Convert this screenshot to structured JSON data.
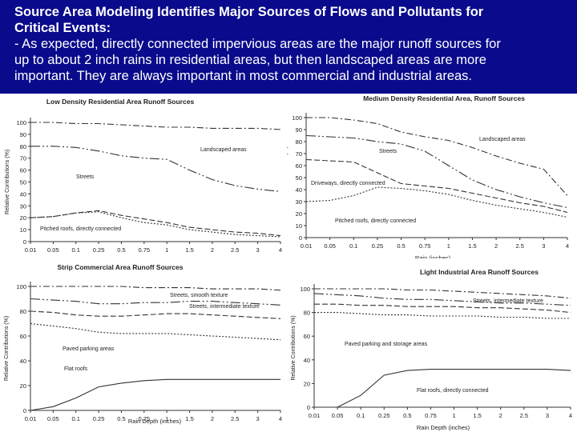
{
  "slide": {
    "headline_line1": "Source Area Modeling Identifies Major Sources of Flows and Pollutants for",
    "headline_line2": "Critical Events:",
    "body_line1": "- As expected, directly connected impervious areas are the major runoff sources for",
    "body_line2": "up to about 2 inch rains in residential areas, but then landscaped areas are more",
    "body_line3": "important. They are always important in most commercial and industrial areas."
  },
  "chart_data": [
    {
      "type": "line",
      "title": "Low Density Residential Area Runoff Sources",
      "xlabel": "",
      "ylabel": "Relative Contributions (%)",
      "categories": [
        "0.01",
        "0.05",
        "0.1",
        "0.25",
        "0.5",
        "0.75",
        "1",
        "1.5",
        "2",
        "2.5",
        "3",
        "4"
      ],
      "yticks": [
        "0",
        "10",
        "20",
        "30",
        "40",
        "50",
        "60",
        "70",
        "80",
        "90",
        "100"
      ],
      "ylim": [
        0,
        100
      ],
      "series": [
        {
          "name": "Landscaped areas",
          "values": [
            100,
            100,
            99,
            99,
            98,
            97,
            96,
            96,
            95,
            95,
            95,
            94
          ]
        },
        {
          "name": "Streets",
          "values": [
            80,
            80,
            79,
            76,
            72,
            70,
            69,
            60,
            52,
            47,
            44,
            42
          ]
        },
        {
          "name": "Pitched roofs, directly connected",
          "values": [
            20,
            21,
            24,
            26,
            22,
            19,
            16,
            12,
            10,
            8,
            7,
            5
          ]
        },
        {
          "name": "",
          "values": [
            20,
            21,
            24,
            25,
            20,
            16,
            14,
            10,
            8,
            6,
            5,
            4
          ]
        }
      ]
    },
    {
      "type": "line",
      "title": "Medium Density Residential Area, Runoff Sources",
      "xlabel": "Rain (inches)",
      "ylabel": "Relative Contribution (%)",
      "categories": [
        "0.01",
        "0.05",
        "0.1",
        "0.25",
        "0.5",
        "0.75",
        "1",
        "1.5",
        "2",
        "2.5",
        "3",
        "4"
      ],
      "yticks": [
        "0",
        "10",
        "20",
        "30",
        "40",
        "50",
        "60",
        "70",
        "80",
        "90",
        "100"
      ],
      "ylim": [
        0,
        100
      ],
      "series": [
        {
          "name": "Landscaped areas",
          "values": [
            100,
            100,
            98,
            95,
            88,
            84,
            81,
            75,
            68,
            62,
            57,
            35
          ]
        },
        {
          "name": "Streets",
          "values": [
            85,
            84,
            83,
            80,
            78,
            72,
            60,
            48,
            40,
            34,
            29,
            25
          ]
        },
        {
          "name": "Driveways, directly connected",
          "values": [
            65,
            64,
            63,
            54,
            45,
            43,
            41,
            37,
            33,
            29,
            26,
            21
          ]
        },
        {
          "name": "Pitched roofs, directly connected",
          "values": [
            30,
            31,
            35,
            42,
            41,
            39,
            36,
            31,
            27,
            24,
            21,
            17
          ]
        }
      ]
    },
    {
      "type": "line",
      "title": "Strip Commercial Area Runoff Sources",
      "xlabel": "Rain Depth (inches)",
      "ylabel": "Relative Contributions (%)",
      "categories": [
        "0.01",
        "0.05",
        "0.1",
        "0.25",
        "0.5",
        "0.75",
        "1",
        "1.5",
        "2",
        "2.5",
        "3",
        "4"
      ],
      "yticks": [
        "0",
        "20",
        "40",
        "60",
        "80",
        "100"
      ],
      "ylim": [
        0,
        100
      ],
      "series": [
        {
          "name": "Streets, smooth texture",
          "values": [
            100,
            100,
            100,
            100,
            100,
            99,
            99,
            99,
            98,
            98,
            98,
            97
          ]
        },
        {
          "name": "Streets, intermediate texture",
          "values": [
            90,
            89,
            88,
            86,
            86,
            87,
            87,
            88,
            88,
            87,
            86,
            85
          ]
        },
        {
          "name": "Streets, intermediate texture",
          "values": [
            80,
            79,
            77,
            76,
            76,
            77,
            78,
            78,
            77,
            76,
            75,
            74
          ]
        },
        {
          "name": "Paved parking areas",
          "values": [
            70,
            68,
            66,
            63,
            62,
            62,
            62,
            61,
            60,
            59,
            58,
            57
          ]
        },
        {
          "name": "Flat roofs",
          "values": [
            0,
            3,
            10,
            19,
            22,
            24,
            25,
            25,
            25,
            25,
            25,
            25
          ]
        }
      ]
    },
    {
      "type": "line",
      "title": "Light Industrial Area Runoff Sources",
      "xlabel": "Rain Depth (inches)",
      "ylabel": "Relative Contributions (%)",
      "categories": [
        "0.01",
        "0.05",
        "0.1",
        "0.25",
        "0.5",
        "0.75",
        "1",
        "1.5",
        "2",
        "2.5",
        "3",
        "4"
      ],
      "yticks": [
        "0",
        "20",
        "40",
        "60",
        "80",
        "100"
      ],
      "ylim": [
        0,
        100
      ],
      "series": [
        {
          "name": "",
          "values": [
            100,
            100,
            100,
            100,
            99,
            99,
            98,
            97,
            96,
            95,
            94,
            92
          ]
        },
        {
          "name": "Streets, intermediate texture",
          "values": [
            96,
            95,
            94,
            92,
            91,
            91,
            90,
            89,
            88,
            88,
            87,
            86
          ]
        },
        {
          "name": "",
          "values": [
            87,
            87,
            86,
            86,
            85,
            85,
            85,
            84,
            84,
            83,
            82,
            80
          ]
        },
        {
          "name": "Paved parking and storage areas",
          "values": [
            80,
            80,
            79,
            78,
            78,
            77,
            77,
            77,
            76,
            76,
            75,
            75
          ]
        },
        {
          "name": "Flat roofs, directly connected",
          "values": [
            0,
            0,
            10,
            27,
            31,
            32,
            32,
            32,
            32,
            32,
            32,
            31
          ]
        }
      ]
    }
  ]
}
